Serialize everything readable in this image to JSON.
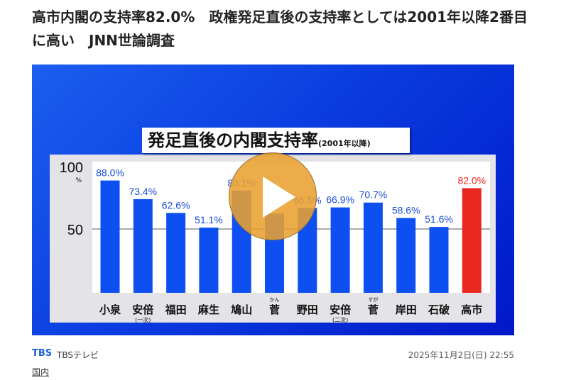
{
  "article": {
    "title": "高市内閣の支持率82.0%　政権発足直後の支持率としては2001年以降2番目に高い　JNN世論調査",
    "source_logo": "TBS",
    "source_name": "TBSテレビ",
    "date": "2025年11月2日(日) 22:55",
    "category": "国内"
  },
  "colors": {
    "bar": "#0d4ff0",
    "highlight": "#e8281e",
    "label_blue": "#1a4fd0",
    "label_red": "#e8281e"
  },
  "chart_data": {
    "type": "bar",
    "title": "発足直後の内閣支持率",
    "subtitle": "(2001年以降)",
    "categories": [
      "小泉",
      "安倍",
      "福田",
      "麻生",
      "鳩山",
      "菅",
      "野田",
      "安倍",
      "菅",
      "岸田",
      "石破",
      "高市"
    ],
    "notes": [
      "",
      "(一次)",
      "",
      "",
      "",
      "",
      "",
      "(二次)",
      "",
      "",
      "",
      ""
    ],
    "ruby": [
      "",
      "",
      "",
      "",
      "",
      "かん",
      "",
      "",
      "すが",
      "",
      "",
      ""
    ],
    "values": [
      88.0,
      73.4,
      62.6,
      51.1,
      80.1,
      null,
      66.5,
      66.9,
      70.7,
      58.6,
      51.6,
      82.0
    ],
    "value_labels": [
      "88.0%",
      "73.4%",
      "62.6%",
      "51.1%",
      "80.1%",
      "",
      "66.5%",
      "66.9%",
      "70.7%",
      "58.6%",
      "51.6%",
      "82.0%"
    ],
    "yticks": [
      "50",
      "100"
    ],
    "yunit": "%",
    "ylim": [
      0,
      100
    ],
    "highlight_index": 11
  }
}
